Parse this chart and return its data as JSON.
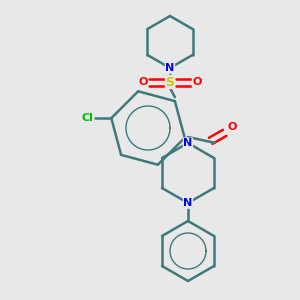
{
  "background_color": "#e8e8e8",
  "bond_color": "#3d7a7a",
  "atom_colors": {
    "N": "#0000ee",
    "O": "#ff0000",
    "S": "#cccc00",
    "Cl": "#00bb00",
    "C": "#000000"
  },
  "figsize": [
    3.0,
    3.0
  ],
  "dpi": 100,
  "xlim": [
    0,
    300
  ],
  "ylim": [
    0,
    300
  ]
}
